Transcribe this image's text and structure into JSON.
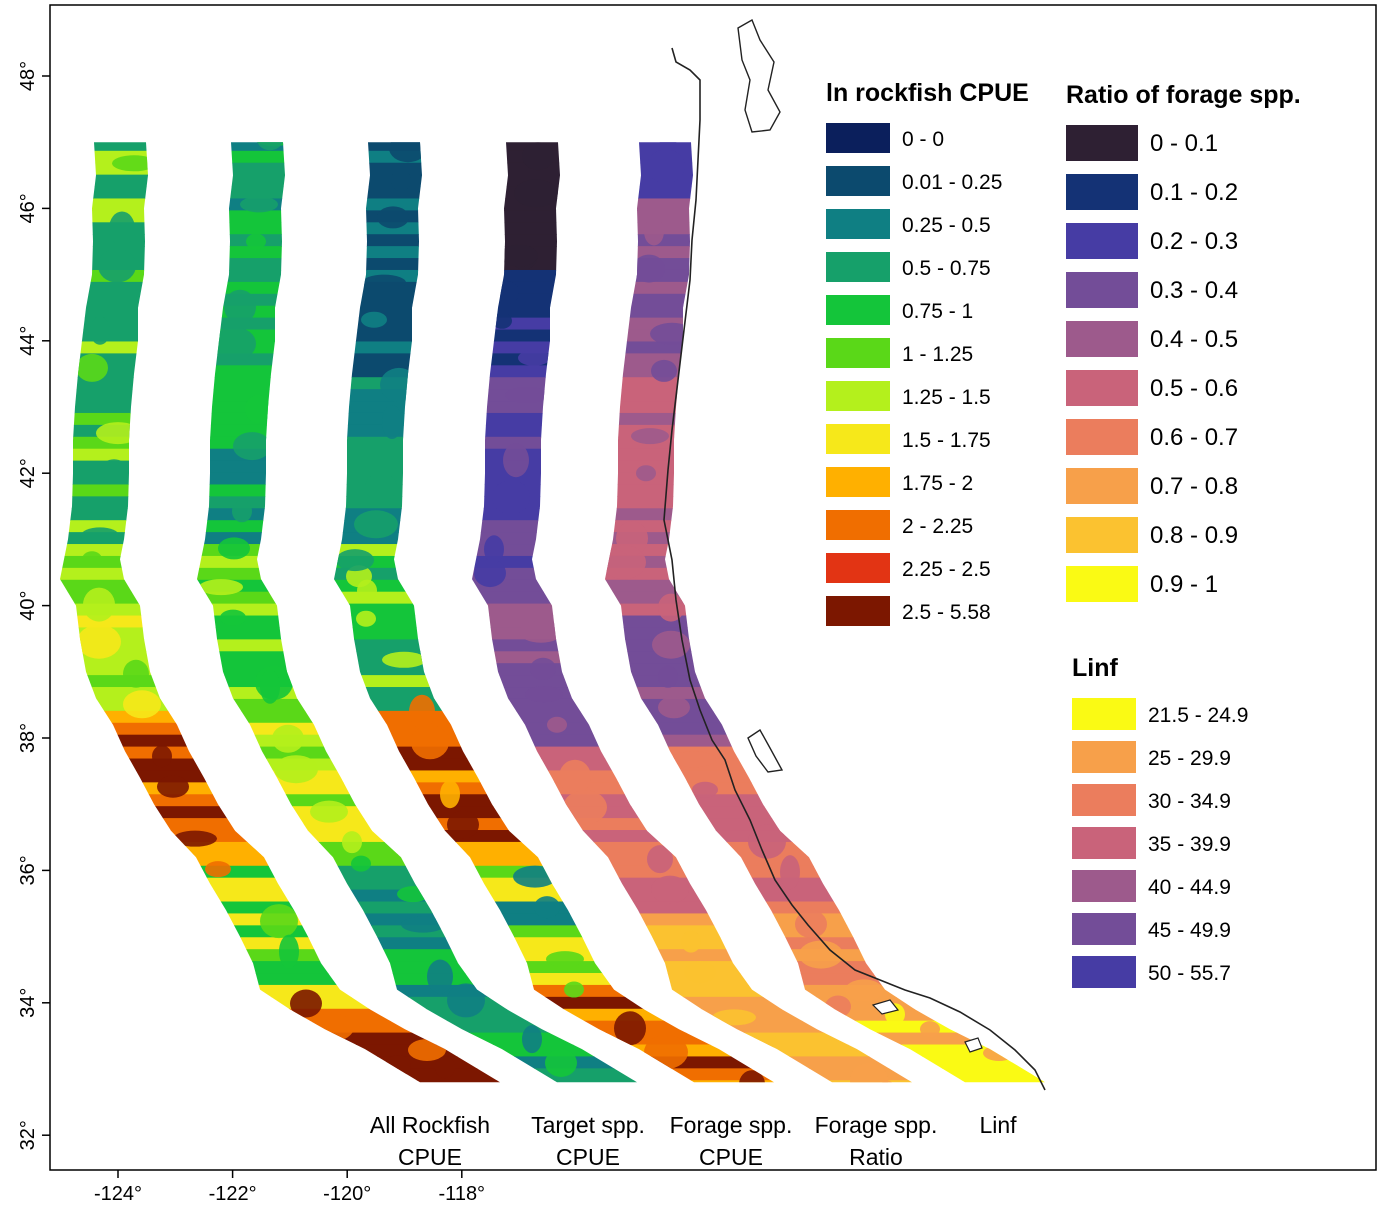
{
  "map": {
    "frame_color": "#000000",
    "x_ticks": [
      {
        "lon": -124,
        "label": "-124°"
      },
      {
        "lon": -122,
        "label": "-122°"
      },
      {
        "lon": -120,
        "label": "-120°"
      },
      {
        "lon": -118,
        "label": "-118°"
      }
    ],
    "y_ticks": [
      {
        "lat": 48,
        "label": "48°"
      },
      {
        "lat": 46,
        "label": "46°"
      },
      {
        "lat": 44,
        "label": "44°"
      },
      {
        "lat": 42,
        "label": "42°"
      },
      {
        "lat": 40,
        "label": "40°"
      },
      {
        "lat": 38,
        "label": "38°"
      },
      {
        "lat": 36,
        "label": "36°"
      },
      {
        "lat": 34,
        "label": "34°"
      },
      {
        "lat": 32,
        "label": "32°"
      }
    ],
    "panels": [
      {
        "line1": "All Rockfish",
        "line2": "CPUE",
        "scale": "cpue",
        "pattern": "all"
      },
      {
        "line1": "Target spp.",
        "line2": "CPUE",
        "scale": "cpue",
        "pattern": "target"
      },
      {
        "line1": "Forage spp.",
        "line2": "CPUE",
        "scale": "cpue",
        "pattern": "forage"
      },
      {
        "line1": "Forage spp.",
        "line2": "Ratio",
        "scale": "ratio",
        "pattern": "ratio"
      },
      {
        "line1": "Linf",
        "line2": "",
        "scale": "linf",
        "pattern": "linf"
      }
    ]
  },
  "legends": {
    "cpue": {
      "title": "ln rockfish CPUE",
      "items": [
        {
          "label": "0 - 0",
          "color": "#0b1f5c"
        },
        {
          "label": "0.01 - 0.25",
          "color": "#0c4a6e"
        },
        {
          "label": "0.25 - 0.5",
          "color": "#0f7f83"
        },
        {
          "label": "0.5 - 0.75",
          "color": "#16a06a"
        },
        {
          "label": "0.75 - 1",
          "color": "#14c53a"
        },
        {
          "label": "1 - 1.25",
          "color": "#5ad818"
        },
        {
          "label": "1.25 - 1.5",
          "color": "#b4f01c"
        },
        {
          "label": "1.5 - 1.75",
          "color": "#f6e81a"
        },
        {
          "label": "1.75 - 2",
          "color": "#ffb000"
        },
        {
          "label": "2 - 2.25",
          "color": "#f06e00"
        },
        {
          "label": "2.25 - 2.5",
          "color": "#e23414"
        },
        {
          "label": "2.5 - 5.58",
          "color": "#7c1700"
        }
      ]
    },
    "ratio": {
      "title": "Ratio of forage spp.",
      "items": [
        {
          "label": "0 - 0.1",
          "color": "#2e2033"
        },
        {
          "label": "0.1 - 0.2",
          "color": "#143275"
        },
        {
          "label": "0.2 - 0.3",
          "color": "#463ca4"
        },
        {
          "label": "0.3 - 0.4",
          "color": "#734d98"
        },
        {
          "label": "0.4 - 0.5",
          "color": "#9d5a8c"
        },
        {
          "label": "0.5 - 0.6",
          "color": "#c9637a"
        },
        {
          "label": "0.6 - 0.7",
          "color": "#eb7d5d"
        },
        {
          "label": "0.7 - 0.8",
          "color": "#f7a04a"
        },
        {
          "label": "0.8 - 0.9",
          "color": "#fbc230"
        },
        {
          "label": "0.9 - 1",
          "color": "#fafa14"
        }
      ]
    },
    "linf": {
      "title": "Linf",
      "items": [
        {
          "label": "21.5 - 24.9",
          "color": "#fafa14"
        },
        {
          "label": "25 - 29.9",
          "color": "#f7a04a"
        },
        {
          "label": "30 - 34.9",
          "color": "#eb7d5d"
        },
        {
          "label": "35 - 39.9",
          "color": "#c9637a"
        },
        {
          "label": "40 - 44.9",
          "color": "#9d5a8c"
        },
        {
          "label": "45 - 49.9",
          "color": "#734d98"
        },
        {
          "label": "50 - 55.7",
          "color": "#463ca4"
        }
      ]
    }
  }
}
